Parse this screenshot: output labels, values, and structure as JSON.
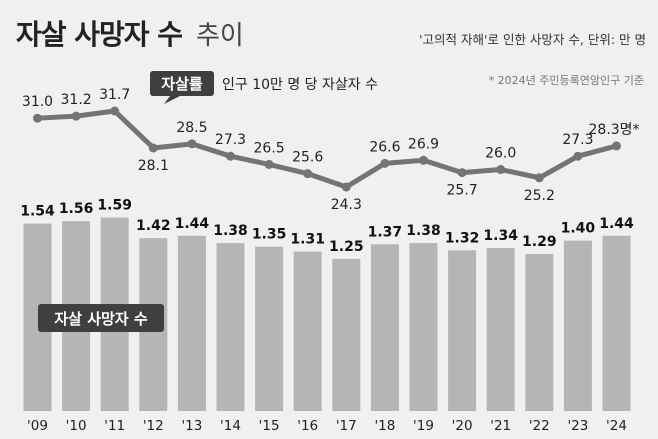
{
  "header": {
    "title": "자살 사망자 수",
    "subtitle": "추이",
    "unit_note": "'고의적 자해'로 인한 사망자 수, 단위: 만 명",
    "source_note": "* 2024년 주민등록연앙인구 기준"
  },
  "rate_legend": {
    "tag": "자살률",
    "description": "인구 10만 명 당 자살자 수"
  },
  "bar_legend": {
    "tag": "자살 사망자 수"
  },
  "rate_suffix": "명*",
  "colors": {
    "background": "#f0f0f0",
    "bar": "#b5b5b5",
    "line": "#747474",
    "dark_tag": "#3f3f3f"
  },
  "chart_data": [
    {
      "type": "bar",
      "name": "자살 사망자 수",
      "categories": [
        "'09",
        "'10",
        "'11",
        "'12",
        "'13",
        "'14",
        "'15",
        "'16",
        "'17",
        "'18",
        "'19",
        "'20",
        "'21",
        "'22",
        "'23",
        "'24"
      ],
      "values": [
        1.54,
        1.56,
        1.59,
        1.42,
        1.44,
        1.38,
        1.35,
        1.31,
        1.25,
        1.37,
        1.38,
        1.32,
        1.34,
        1.29,
        1.4,
        1.44
      ],
      "unit": "만 명"
    },
    {
      "type": "line",
      "name": "자살률",
      "categories": [
        "'09",
        "'10",
        "'11",
        "'12",
        "'13",
        "'14",
        "'15",
        "'16",
        "'17",
        "'18",
        "'19",
        "'20",
        "'21",
        "'22",
        "'23",
        "'24"
      ],
      "values": [
        31.0,
        31.2,
        31.7,
        28.1,
        28.5,
        27.3,
        26.5,
        25.6,
        24.3,
        26.6,
        26.9,
        25.7,
        26.0,
        25.2,
        27.3,
        28.3
      ],
      "value_labels": [
        "31.0",
        "31.2",
        "31.7",
        "28.1",
        "28.5",
        "27.3",
        "26.5",
        "25.6",
        "24.3",
        "26.6",
        "26.9",
        "25.7",
        "26.0",
        "25.2",
        "27.3",
        "28.3"
      ],
      "unit": "인구 10만 명 당"
    }
  ]
}
